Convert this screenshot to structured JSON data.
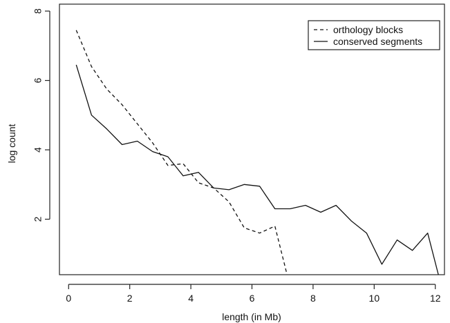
{
  "chart_data": {
    "type": "line",
    "xlabel": "length (in Mb)",
    "ylabel": "log count",
    "xlim": [
      -0.3,
      12.3
    ],
    "ylim": [
      0.4,
      8.2
    ],
    "x_ticks": [
      0,
      2,
      4,
      6,
      8,
      10,
      12
    ],
    "y_ticks": [
      2,
      4,
      6,
      8
    ],
    "grid": false,
    "legend_position": "top-right",
    "series": [
      {
        "name": "orthology blocks",
        "line_style": "dashed",
        "color": "#111111",
        "x": [
          0.25,
          0.75,
          1.25,
          1.75,
          2.25,
          2.75,
          3.25,
          3.75,
          4.25,
          4.75,
          5.25,
          5.75,
          6.25,
          6.75,
          7.15
        ],
        "y": [
          7.45,
          6.4,
          5.75,
          5.3,
          4.75,
          4.2,
          3.55,
          3.6,
          3.05,
          2.9,
          2.5,
          1.75,
          1.6,
          1.8,
          0.4
        ]
      },
      {
        "name": "conserved segments",
        "line_style": "solid",
        "color": "#111111",
        "x": [
          0.25,
          0.75,
          1.25,
          1.75,
          2.25,
          2.75,
          3.25,
          3.75,
          4.25,
          4.75,
          5.25,
          5.75,
          6.25,
          6.75,
          7.25,
          7.75,
          8.25,
          8.75,
          9.25,
          9.75,
          10.25,
          10.75,
          11.25,
          11.75,
          12.1
        ],
        "y": [
          6.45,
          5.0,
          4.6,
          4.15,
          4.25,
          3.95,
          3.8,
          3.25,
          3.35,
          2.9,
          2.85,
          3.0,
          2.95,
          2.3,
          2.3,
          2.4,
          2.2,
          2.4,
          1.95,
          1.6,
          0.7,
          1.4,
          1.1,
          1.6,
          0.4
        ]
      }
    ]
  }
}
